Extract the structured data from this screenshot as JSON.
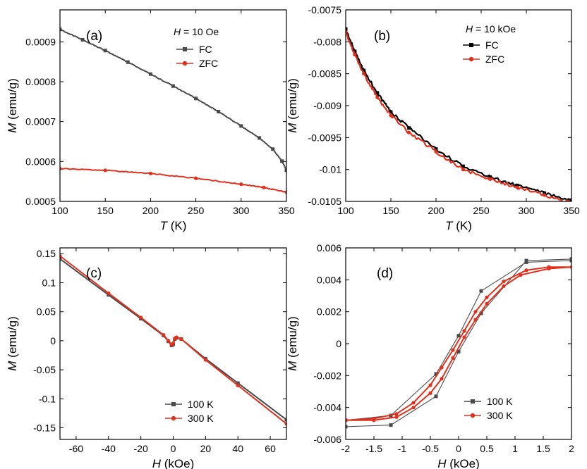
{
  "colors": {
    "series_gray": "#4a4a4a",
    "series_red": "#e0301e",
    "axis": "#000000"
  },
  "chart_data": [
    {
      "panel": "(a)",
      "type": "line",
      "condition": {
        "var": "H",
        "rest": " = 10 Oe"
      },
      "xlabel": {
        "var": "T",
        "rest": " (K)"
      },
      "ylabel": {
        "var": "M",
        "rest": " (emu/g)"
      },
      "xlim": [
        100,
        350
      ],
      "ylim": [
        0.0005,
        0.00098
      ],
      "xticks": [
        "100",
        "150",
        "200",
        "250",
        "300",
        "350"
      ],
      "yticks": [
        "0.0005",
        "0.0006",
        "0.0007",
        "0.0008",
        "0.0009"
      ],
      "legend_placement": "top-right",
      "series": [
        {
          "name": "FC",
          "color": "#4a4a4a",
          "x": [
            100,
            125,
            150,
            175,
            200,
            225,
            250,
            275,
            300,
            320,
            335,
            345,
            350
          ],
          "y": [
            0.000931,
            0.000905,
            0.000878,
            0.000849,
            0.000819,
            0.000789,
            0.000758,
            0.000725,
            0.000689,
            0.000659,
            0.000631,
            0.000601,
            0.000578
          ]
        },
        {
          "name": "ZFC",
          "color": "#e0301e",
          "x": [
            100,
            150,
            200,
            250,
            300,
            325,
            350
          ],
          "y": [
            0.000582,
            0.000578,
            0.00057,
            0.000558,
            0.000543,
            0.000535,
            0.000523
          ]
        }
      ]
    },
    {
      "panel": "(b)",
      "type": "line",
      "condition": {
        "var": "H",
        "rest": " = 10 kOe"
      },
      "xlabel": {
        "var": "T",
        "rest": " (K)"
      },
      "ylabel": {
        "var": "M",
        "rest": " (emu/g)"
      },
      "xlim": [
        100,
        350
      ],
      "ylim": [
        -0.0105,
        -0.0075
      ],
      "xticks": [
        "100",
        "150",
        "200",
        "250",
        "300",
        "350"
      ],
      "yticks": [
        "-0.0075",
        "-0.008",
        "-0.0085",
        "-0.009",
        "-0.0095",
        "-0.01",
        "-0.0105"
      ],
      "legend_placement": "top-right",
      "series": [
        {
          "name": "FC",
          "color": "#000000",
          "x": [
            100,
            110,
            120,
            135,
            150,
            170,
            200,
            230,
            260,
            290,
            320,
            350
          ],
          "y": [
            -0.0078,
            -0.00815,
            -0.00845,
            -0.0088,
            -0.0091,
            -0.00935,
            -0.00968,
            -0.00995,
            -0.01012,
            -0.01025,
            -0.01037,
            -0.01048
          ]
        },
        {
          "name": "ZFC",
          "color": "#e0301e",
          "x": [
            100,
            110,
            120,
            135,
            150,
            170,
            200,
            230,
            260,
            290,
            320,
            350
          ],
          "y": [
            -0.00785,
            -0.0082,
            -0.0085,
            -0.00887,
            -0.00915,
            -0.00942,
            -0.00972,
            -0.01,
            -0.01015,
            -0.01028,
            -0.0104,
            -0.01052
          ]
        }
      ]
    },
    {
      "panel": "(c)",
      "type": "line",
      "xlabel": {
        "var": "H",
        "rest": " (kOe)"
      },
      "ylabel": {
        "var": "M",
        "rest": " (emu/g)"
      },
      "xlim": [
        -70,
        70
      ],
      "ylim": [
        -0.17,
        0.16
      ],
      "xticks": [
        "-60",
        "-40",
        "-20",
        "0",
        "20",
        "40",
        "60"
      ],
      "yticks": [
        "0.15",
        "0.1",
        "0.05",
        "0",
        "-0.05",
        "-0.1",
        "-0.15"
      ],
      "legend_placement": "bottom-right",
      "series": [
        {
          "name": "100 K",
          "color": "#4a4a4a",
          "x": [
            -70,
            -40,
            -20,
            -6,
            -3,
            -1,
            0,
            1,
            2,
            5,
            20,
            40,
            70
          ],
          "y": [
            0.141,
            0.079,
            0.038,
            0.009,
            -0.001,
            -0.008,
            -0.006,
            0.003,
            0.005,
            0.003,
            -0.031,
            -0.073,
            -0.136
          ]
        },
        {
          "name": "300 K",
          "color": "#e0301e",
          "x": [
            -70,
            -40,
            -20,
            -6,
            -3,
            -1,
            0,
            1,
            2,
            5,
            20,
            40,
            70
          ],
          "y": [
            0.146,
            0.082,
            0.04,
            0.01,
            0.0,
            -0.007,
            -0.004,
            0.004,
            0.006,
            0.003,
            -0.033,
            -0.077,
            -0.143
          ]
        }
      ]
    },
    {
      "panel": "(d)",
      "type": "line",
      "xlabel": {
        "var": "H",
        "rest": " (kOe)"
      },
      "ylabel": {
        "var": "M",
        "rest": " (emu/g)"
      },
      "xlim": [
        -2,
        2
      ],
      "ylim": [
        -0.006,
        0.006
      ],
      "xticks": [
        "-2",
        "-1.5",
        "-1",
        "-0.5",
        "0",
        "0.5",
        "1",
        "1.5",
        "2"
      ],
      "yticks": [
        "0.006",
        "0.004",
        "0.002",
        "0",
        "-0.002",
        "-0.004",
        "-0.006"
      ],
      "legend_placement": "bottom-right",
      "series": [
        {
          "name": "100 K",
          "color": "#4a4a4a",
          "x": [
            2,
            1.2,
            0.4,
            0,
            -0.4,
            -1.2,
            -2,
            -2,
            -1.2,
            -0.4,
            0,
            0.4,
            1.2,
            2
          ],
          "y": [
            0.0052,
            0.0051,
            0.0033,
            0.0005,
            -0.0019,
            -0.0045,
            -0.0048,
            -0.0052,
            -0.0051,
            -0.0033,
            -0.0005,
            0.0019,
            0.0052,
            0.0053
          ]
        },
        {
          "name": "300 K",
          "color": "#e0301e",
          "x": [
            2,
            1.6,
            1.2,
            0.8,
            0.5,
            0.3,
            0.1,
            -0.1,
            -0.3,
            -0.5,
            -0.8,
            -1.1,
            -1.5,
            -2,
            -1.5,
            -1.1,
            -0.8,
            -0.5,
            -0.3,
            -0.1,
            0.1,
            0.3,
            0.5,
            0.8,
            1.1,
            1.6,
            2
          ],
          "y": [
            0.0048,
            0.0048,
            0.0046,
            0.0039,
            0.0029,
            0.002,
            0.0008,
            -0.0004,
            -0.0015,
            -0.0026,
            -0.0037,
            -0.0044,
            -0.0047,
            -0.0048,
            -0.0048,
            -0.0046,
            -0.004,
            -0.0031,
            -0.0022,
            -0.0009,
            0.0004,
            0.0015,
            0.0025,
            0.0036,
            0.0043,
            0.0047,
            0.0048
          ]
        }
      ]
    }
  ]
}
